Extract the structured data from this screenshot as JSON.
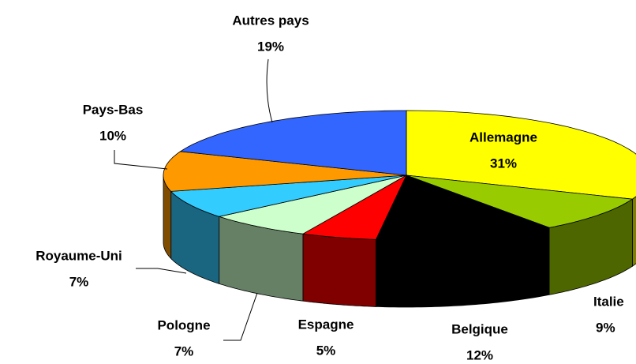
{
  "chart_data": {
    "type": "pie3d",
    "categories": [
      "Allemagne",
      "Italie",
      "Belgique",
      "Espagne",
      "Pologne",
      "Royaume-Uni",
      "Pays-Bas",
      "Autres pays"
    ],
    "values": [
      31,
      9,
      12,
      5,
      7,
      7,
      10,
      19
    ],
    "value_labels": [
      "31%",
      "9%",
      "12%",
      "5%",
      "7%",
      "7%",
      "10%",
      "19%"
    ],
    "colors": [
      "#ffff00",
      "#99cc00",
      "#000000",
      "#ff0000",
      "#ccffcc",
      "#33ccff",
      "#ff9900",
      "#3366ff"
    ]
  }
}
